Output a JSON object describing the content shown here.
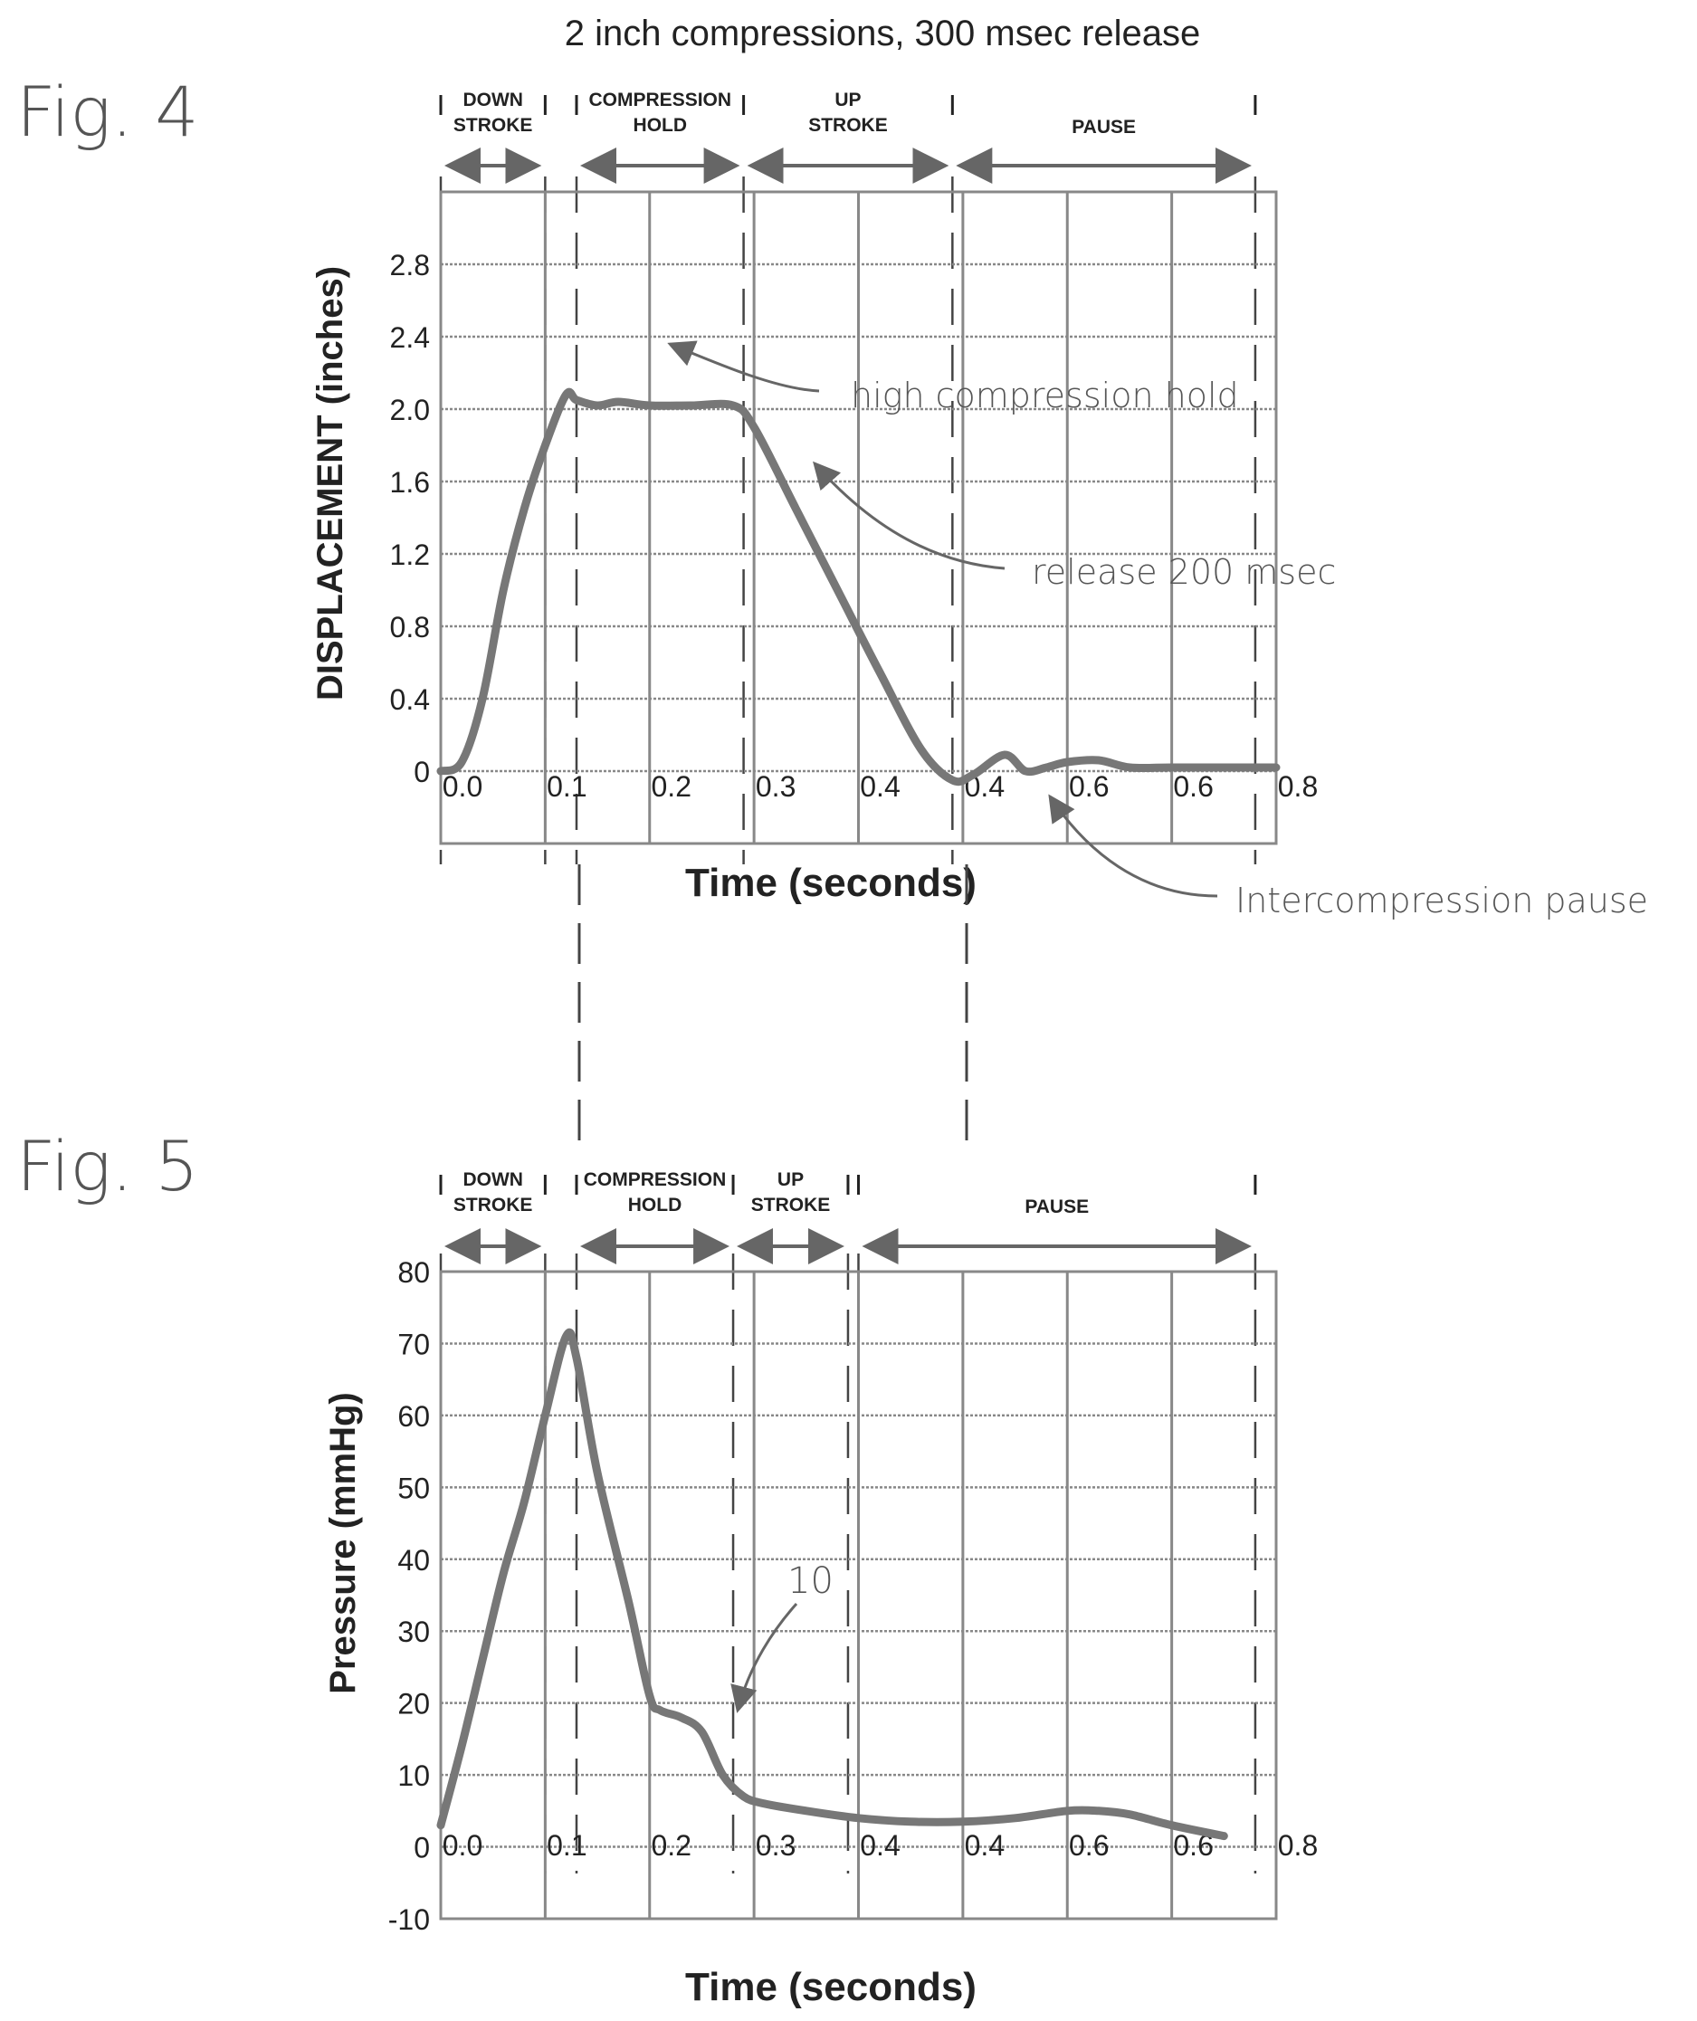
{
  "page_title": "2 inch compressions, 300 msec release",
  "colors": {
    "curve": "#777777",
    "grid": "#888888",
    "ink": "#222222",
    "annotation": "#666666"
  },
  "chart_data": [
    {
      "type": "line",
      "figure_label": "Fig. 4",
      "xlabel": "Time (seconds)",
      "ylabel": "DISPLACEMENT (inches)",
      "x_tick_labels": [
        "0.0",
        "0.1",
        "0.2",
        "0.3",
        "0.4",
        "0.4",
        "0.6",
        "0.6",
        "0.8"
      ],
      "y_tick_labels": [
        "0",
        "0.4",
        "0.8",
        "1.2",
        "1.6",
        "2.0",
        "2.4",
        "2.8"
      ],
      "y_tick_values": [
        0,
        0.4,
        0.8,
        1.2,
        1.6,
        2.0,
        2.4,
        2.8
      ],
      "xlim": [
        0,
        0.8
      ],
      "ylim": [
        -0.4,
        3.2
      ],
      "grid": true,
      "phases": [
        {
          "name": "DOWN\nSTROKE",
          "x_start": 0.0,
          "x_end": 0.1
        },
        {
          "name": "COMPRESSION\nHOLD",
          "x_start": 0.13,
          "x_end": 0.29
        },
        {
          "name": "UP\nSTROKE",
          "x_start": 0.29,
          "x_end": 0.49
        },
        {
          "name": "PAUSE",
          "x_start": 0.49,
          "x_end": 0.78
        }
      ],
      "annotations": [
        "high compression hold",
        "release 200 msec",
        "Intercompression pause"
      ],
      "series": [
        {
          "x": [
            0.0,
            0.02,
            0.04,
            0.06,
            0.08,
            0.1,
            0.12,
            0.13,
            0.15,
            0.17,
            0.2,
            0.24,
            0.28,
            0.3,
            0.34,
            0.38,
            0.42,
            0.46,
            0.49,
            0.51,
            0.54,
            0.56,
            0.58,
            0.6,
            0.63,
            0.66,
            0.7,
            0.75,
            0.8
          ],
          "y": [
            0.0,
            0.05,
            0.4,
            1.0,
            1.45,
            1.8,
            2.08,
            2.05,
            2.02,
            2.04,
            2.02,
            2.02,
            2.02,
            1.9,
            1.45,
            1.0,
            0.55,
            0.12,
            -0.05,
            -0.02,
            0.09,
            0.0,
            0.02,
            0.05,
            0.06,
            0.02,
            0.02,
            0.02,
            0.02
          ]
        }
      ]
    },
    {
      "type": "line",
      "figure_label": "Fig. 5",
      "xlabel": "Time (seconds)",
      "ylabel": "Pressure (mmHg)",
      "x_tick_labels": [
        "0.0",
        "0.1",
        "0.2",
        "0.3",
        "0.4",
        "0.4",
        "0.6",
        "0.6",
        "0.8"
      ],
      "y_tick_labels": [
        "-10",
        "0",
        "10",
        "20",
        "30",
        "40",
        "50",
        "60",
        "70",
        "80"
      ],
      "y_tick_values": [
        -10,
        0,
        10,
        20,
        30,
        40,
        50,
        60,
        70,
        80
      ],
      "xlim": [
        0,
        0.8
      ],
      "ylim": [
        -10,
        80
      ],
      "grid": true,
      "phases": [
        {
          "name": "DOWN\nSTROKE",
          "x_start": 0.0,
          "x_end": 0.1
        },
        {
          "name": "COMPRESSION\nHOLD",
          "x_start": 0.13,
          "x_end": 0.28
        },
        {
          "name": "UP\nSTROKE",
          "x_start": 0.28,
          "x_end": 0.39
        },
        {
          "name": "PAUSE",
          "x_start": 0.4,
          "x_end": 0.78
        }
      ],
      "annotations": [
        "10"
      ],
      "series": [
        {
          "x": [
            0.0,
            0.02,
            0.04,
            0.06,
            0.08,
            0.1,
            0.12,
            0.13,
            0.15,
            0.18,
            0.2,
            0.21,
            0.23,
            0.25,
            0.27,
            0.29,
            0.31,
            0.35,
            0.4,
            0.45,
            0.5,
            0.55,
            0.6,
            0.63,
            0.66,
            0.7,
            0.75
          ],
          "y": [
            3,
            14,
            26,
            38,
            48,
            60,
            71,
            68,
            52,
            34,
            21,
            19,
            18,
            16,
            10,
            7,
            6,
            5,
            4,
            3.5,
            3.5,
            4,
            5,
            5,
            4.5,
            3,
            1.5
          ]
        }
      ]
    }
  ]
}
